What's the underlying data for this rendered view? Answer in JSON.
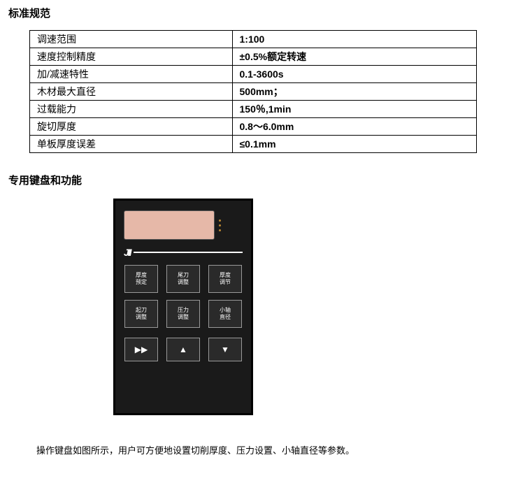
{
  "sections": {
    "spec_title": "标准规范",
    "keypad_title": "专用键盘和功能"
  },
  "spec_table": {
    "columns": [
      "label",
      "value"
    ],
    "rows": [
      [
        "调速范围",
        "1:100"
      ],
      [
        "速度控制精度",
        "±0.5%额定转速"
      ],
      [
        "加/减速特性",
        "0.1-3600s"
      ],
      [
        "木材最大直径",
        "500mm；"
      ],
      [
        "过载能力",
        "150％,1min"
      ],
      [
        "旋切厚度",
        "0.8～6.0mm"
      ],
      [
        "单板厚度误差",
        "≤0.1mm"
      ]
    ]
  },
  "keypad": {
    "screen_color": "#e6b8a8",
    "body_color": "#1a1a1a",
    "border_color": "#000000",
    "button_bg": "#2a2a2a",
    "button_border": "#999999",
    "leds": [
      {
        "label": ""
      },
      {
        "label": ""
      },
      {
        "label": ""
      }
    ],
    "logo_text": "JII",
    "func_buttons": [
      {
        "line1": "厚度",
        "line2": "预定"
      },
      {
        "line1": "尾刀",
        "line2": "调整"
      },
      {
        "line1": "厚度",
        "line2": "调节"
      },
      {
        "line1": "起刀",
        "line2": "调整"
      },
      {
        "line1": "压力",
        "line2": "调整"
      },
      {
        "line1": "小轴",
        "line2": "直径"
      }
    ],
    "nav_buttons": [
      {
        "glyph": "▶▶"
      },
      {
        "glyph": "▲"
      },
      {
        "glyph": "▼"
      }
    ]
  },
  "caption": "操作键盘如图所示，用户可方便地设置切削厚度、压力设置、小轴直径等参数。"
}
